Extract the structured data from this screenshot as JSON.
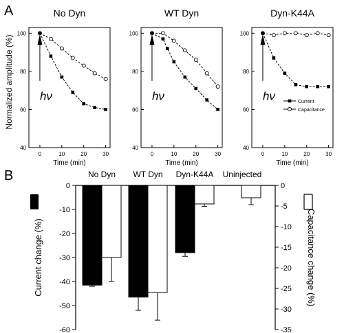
{
  "figure": {
    "panel_a_letter": "A",
    "panel_b_letter": "B",
    "hv_label": "hν"
  },
  "chart_data": [
    {
      "type": "line",
      "panel": "A",
      "title": "No Dyn",
      "xlabel": "Time (min)",
      "ylabel": "Normalized amplitude (%)",
      "xlim": [
        -5,
        32
      ],
      "ylim": [
        40,
        103
      ],
      "xticks": [
        "0",
        "10",
        "20",
        "30"
      ],
      "yticks": [
        "40",
        "60",
        "80",
        "100"
      ],
      "arrow_label": "hν",
      "series": [
        {
          "name": "Current",
          "marker": "filled-square",
          "x": [
            0,
            5,
            10,
            15,
            20,
            25,
            30
          ],
          "y": [
            100,
            88,
            77,
            69,
            63,
            61,
            60
          ]
        },
        {
          "name": "Capacitance",
          "marker": "open-circle",
          "x": [
            0,
            5,
            10,
            15,
            20,
            25,
            30
          ],
          "y": [
            100,
            97,
            92,
            87,
            83,
            79,
            76
          ]
        }
      ]
    },
    {
      "type": "line",
      "panel": "A",
      "title": "WT Dyn",
      "xlabel": "Time (min)",
      "xlim": [
        -5,
        32
      ],
      "ylim": [
        40,
        103
      ],
      "xticks": [
        "0",
        "10",
        "20",
        "30"
      ],
      "yticks": [
        "40",
        "60",
        "80",
        "100"
      ],
      "arrow_label": "hν",
      "series": [
        {
          "name": "Current",
          "marker": "filled-square",
          "x": [
            0,
            5,
            7,
            10,
            15,
            20,
            25,
            30
          ],
          "y": [
            100,
            97,
            92,
            85,
            77,
            71,
            65,
            60
          ]
        },
        {
          "name": "Capacitance",
          "marker": "open-circle",
          "x": [
            0,
            5,
            10,
            15,
            20,
            25,
            30
          ],
          "y": [
            100,
            100,
            96,
            91,
            86,
            79,
            72
          ]
        }
      ]
    },
    {
      "type": "line",
      "panel": "A",
      "title": "Dyn-K44A",
      "xlabel": "Time (min)",
      "xlim": [
        -5,
        32
      ],
      "ylim": [
        40,
        103
      ],
      "xticks": [
        "0",
        "10",
        "20",
        "30"
      ],
      "yticks": [
        "40",
        "60",
        "80",
        "100"
      ],
      "arrow_label": "hν",
      "legend": {
        "placement": "bottom-right",
        "entries": [
          "Current",
          "Capacitance"
        ]
      },
      "series": [
        {
          "name": "Current",
          "marker": "filled-square",
          "x": [
            0,
            5,
            10,
            15,
            20,
            25,
            30
          ],
          "y": [
            100,
            87,
            79,
            73,
            72,
            72,
            72
          ]
        },
        {
          "name": "Capacitance",
          "marker": "open-circle",
          "x": [
            0,
            5,
            10,
            15,
            20,
            25,
            30
          ],
          "y": [
            100,
            99,
            100,
            100,
            99,
            100,
            99
          ]
        }
      ]
    },
    {
      "type": "bar",
      "panel": "B",
      "categories": [
        "No Dyn",
        "WT Dyn",
        "Dyn-K44A",
        "Uninjected"
      ],
      "ylabel_left": "Current change (%)",
      "ylabel_right": "Capacitance change (%)",
      "ylim_left": [
        -60,
        0
      ],
      "ylim_right": [
        -35,
        0
      ],
      "yticks_left": [
        "0",
        "-10",
        "-20",
        "-30",
        "-40",
        "-50",
        "-60"
      ],
      "yticks_right": [
        "0",
        "-5",
        "-10",
        "-15",
        "-20",
        "-25",
        "-30",
        "-35"
      ],
      "series": [
        {
          "name": "Current",
          "axis": "left",
          "fill": "#000000",
          "values": [
            -41.5,
            -46.5,
            -28,
            null
          ],
          "errors": [
            0.5,
            5.5,
            1.5,
            null
          ]
        },
        {
          "name": "Capacitance",
          "axis": "right",
          "fill": "#ffffff",
          "values": [
            -17.5,
            -26,
            -4.5,
            -3
          ],
          "errors": [
            5.8,
            6.7,
            0.6,
            1.7
          ]
        }
      ]
    }
  ]
}
